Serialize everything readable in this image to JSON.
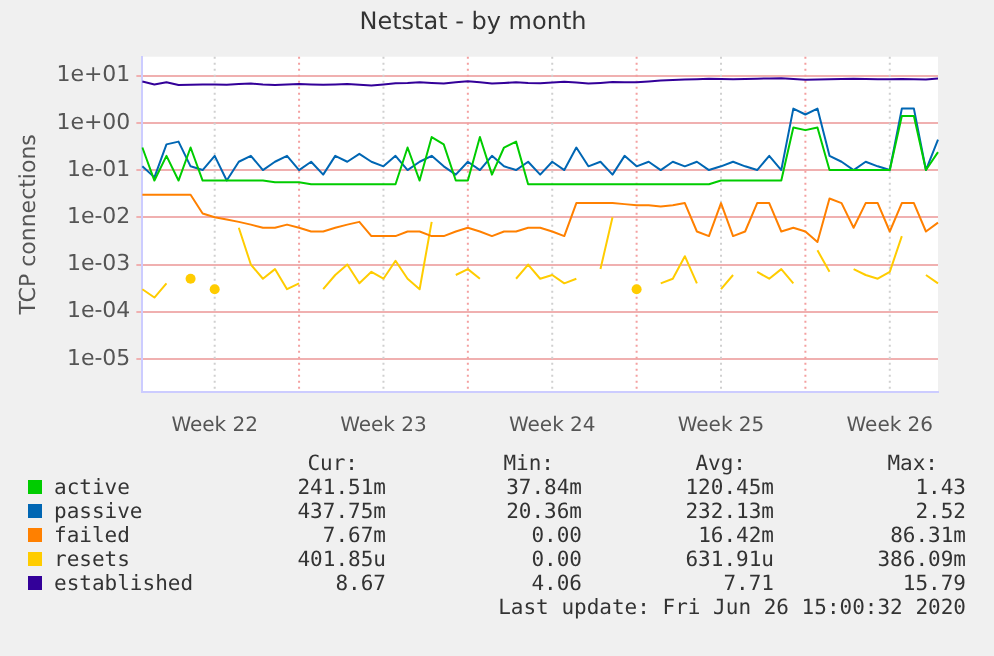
{
  "chart_data": {
    "type": "line",
    "title": "Netstat - by month",
    "ylabel": "TCP connections",
    "log": true,
    "grid": true,
    "legend": "bottom",
    "marker": "none",
    "line_style": "solid",
    "categories": [
      null,
      null,
      null,
      null,
      null,
      null,
      "Week 22",
      null,
      null,
      null,
      null,
      null,
      null,
      null,
      null,
      null,
      null,
      null,
      null,
      null,
      "Week 23",
      null,
      null,
      null,
      null,
      null,
      null,
      null,
      null,
      null,
      null,
      null,
      null,
      null,
      "Week 24",
      null,
      null,
      null,
      null,
      null,
      null,
      null,
      null,
      null,
      null,
      null,
      null,
      null,
      "Week 25",
      null,
      null,
      null,
      null,
      null,
      null,
      null,
      null,
      null,
      null,
      null,
      null,
      null,
      "Week 26",
      null,
      null,
      null,
      null
    ],
    "ylim": [
      2e-06,
      25
    ],
    "yticks": [
      {
        "value": 1e-05,
        "label": "1e-05"
      },
      {
        "value": 0.0001,
        "label": "1e-04"
      },
      {
        "value": 0.001,
        "label": "1e-03"
      },
      {
        "value": 0.01,
        "label": "1e-02"
      },
      {
        "value": 0.1,
        "label": "1e-01"
      },
      {
        "value": 1,
        "label": "1e+00"
      },
      {
        "value": 10,
        "label": "1e+01"
      }
    ],
    "series": [
      {
        "name": "active",
        "color": "#00cc00",
        "values": [
          0.3,
          0.06,
          0.2,
          0.06,
          0.3,
          0.06,
          0.06,
          0.06,
          0.06,
          0.06,
          0.06,
          0.055,
          0.055,
          0.055,
          0.05,
          0.05,
          0.05,
          0.05,
          0.05,
          0.05,
          0.05,
          0.05,
          0.3,
          0.06,
          0.5,
          0.35,
          0.06,
          0.06,
          0.5,
          0.08,
          0.3,
          0.4,
          0.05,
          0.05,
          0.05,
          0.05,
          0.05,
          0.05,
          0.05,
          0.05,
          0.05,
          0.05,
          0.05,
          0.05,
          0.05,
          0.05,
          0.05,
          0.05,
          0.06,
          0.06,
          0.06,
          0.06,
          0.06,
          0.06,
          0.8,
          0.7,
          0.8,
          0.1,
          0.1,
          0.1,
          0.1,
          0.1,
          0.1,
          1.4,
          1.4,
          0.1,
          0.24
        ]
      },
      {
        "name": "passive",
        "color": "#0066b3",
        "values": [
          0.12,
          0.07,
          0.35,
          0.4,
          0.12,
          0.1,
          0.2,
          0.06,
          0.15,
          0.2,
          0.1,
          0.15,
          0.2,
          0.1,
          0.15,
          0.08,
          0.2,
          0.15,
          0.22,
          0.15,
          0.12,
          0.2,
          0.1,
          0.15,
          0.2,
          0.12,
          0.08,
          0.15,
          0.1,
          0.2,
          0.12,
          0.1,
          0.15,
          0.08,
          0.15,
          0.1,
          0.3,
          0.12,
          0.15,
          0.08,
          0.2,
          0.12,
          0.15,
          0.1,
          0.15,
          0.12,
          0.15,
          0.1,
          0.12,
          0.15,
          0.12,
          0.1,
          0.2,
          0.1,
          2.0,
          1.5,
          2.0,
          0.2,
          0.15,
          0.1,
          0.15,
          0.12,
          0.1,
          2.0,
          2.0,
          0.1,
          0.44
        ]
      },
      {
        "name": "failed",
        "color": "#ff8000",
        "values": [
          0.03,
          0.03,
          0.03,
          0.03,
          0.03,
          0.012,
          0.01,
          0.009,
          0.008,
          0.007,
          0.006,
          0.006,
          0.007,
          0.006,
          0.005,
          0.005,
          0.006,
          0.007,
          0.008,
          0.004,
          0.004,
          0.004,
          0.005,
          0.005,
          0.004,
          0.004,
          0.005,
          0.006,
          0.005,
          0.004,
          0.005,
          0.005,
          0.006,
          0.006,
          0.005,
          0.004,
          0.02,
          0.02,
          0.02,
          0.02,
          0.019,
          0.018,
          0.018,
          0.017,
          0.018,
          0.02,
          0.005,
          0.004,
          0.02,
          0.004,
          0.005,
          0.02,
          0.02,
          0.005,
          0.006,
          0.005,
          0.003,
          0.025,
          0.02,
          0.006,
          0.02,
          0.02,
          0.005,
          0.02,
          0.02,
          0.005,
          0.0077
        ]
      },
      {
        "name": "resets",
        "color": "#ffcc00",
        "values": [
          0.0003,
          0.0002,
          0.0004,
          null,
          0.0005,
          null,
          0.0003,
          null,
          0.006,
          0.001,
          0.0005,
          0.0008,
          0.0003,
          0.0004,
          null,
          0.0003,
          0.0006,
          0.001,
          0.0004,
          0.0007,
          0.0005,
          0.0012,
          0.0005,
          0.0003,
          0.008,
          null,
          0.0006,
          0.0008,
          0.0005,
          null,
          null,
          0.0005,
          0.001,
          0.0005,
          0.0006,
          0.0004,
          0.0005,
          null,
          0.0008,
          0.01,
          null,
          0.0003,
          null,
          0.0004,
          0.0005,
          0.0015,
          0.0004,
          null,
          0.0003,
          0.0006,
          null,
          0.0007,
          0.0005,
          0.0008,
          0.0004,
          null,
          0.002,
          0.0007,
          null,
          0.0008,
          0.0006,
          0.0005,
          0.0007,
          0.004,
          null,
          0.0006,
          0.0004
        ]
      },
      {
        "name": "established",
        "color": "#330099",
        "values": [
          7.5,
          6.5,
          7.2,
          6.3,
          6.4,
          6.5,
          6.5,
          6.4,
          6.6,
          6.8,
          6.5,
          6.3,
          6.5,
          6.6,
          6.5,
          6.4,
          6.5,
          6.6,
          6.4,
          6.2,
          6.5,
          6.9,
          7.0,
          7.2,
          7.0,
          6.8,
          7.2,
          7.6,
          7.2,
          6.8,
          7.0,
          7.2,
          7.0,
          6.9,
          7.1,
          7.4,
          7.1,
          6.8,
          7.0,
          7.3,
          7.2,
          7.2,
          7.5,
          7.9,
          8.1,
          8.3,
          8.4,
          8.6,
          8.5,
          8.4,
          8.5,
          8.6,
          8.7,
          8.8,
          8.5,
          8.2,
          8.3,
          8.4,
          8.5,
          8.6,
          8.5,
          8.4,
          8.4,
          8.5,
          8.4,
          8.3,
          8.67
        ]
      }
    ],
    "annotations": [
      "Cur:",
      "Min:",
      "Avg:",
      "Max:",
      "241.51m",
      "37.84m",
      "120.45m",
      "1.43",
      "437.75m",
      "20.36m",
      "232.13m",
      "2.52",
      "7.67m",
      "0.00",
      "16.42m",
      "86.31m",
      "401.85u",
      "0.00",
      "631.91u",
      "386.09m",
      "8.67",
      "4.06",
      "7.71",
      "15.79",
      "Last update: Fri Jun 26 15:00:32 2020"
    ]
  }
}
